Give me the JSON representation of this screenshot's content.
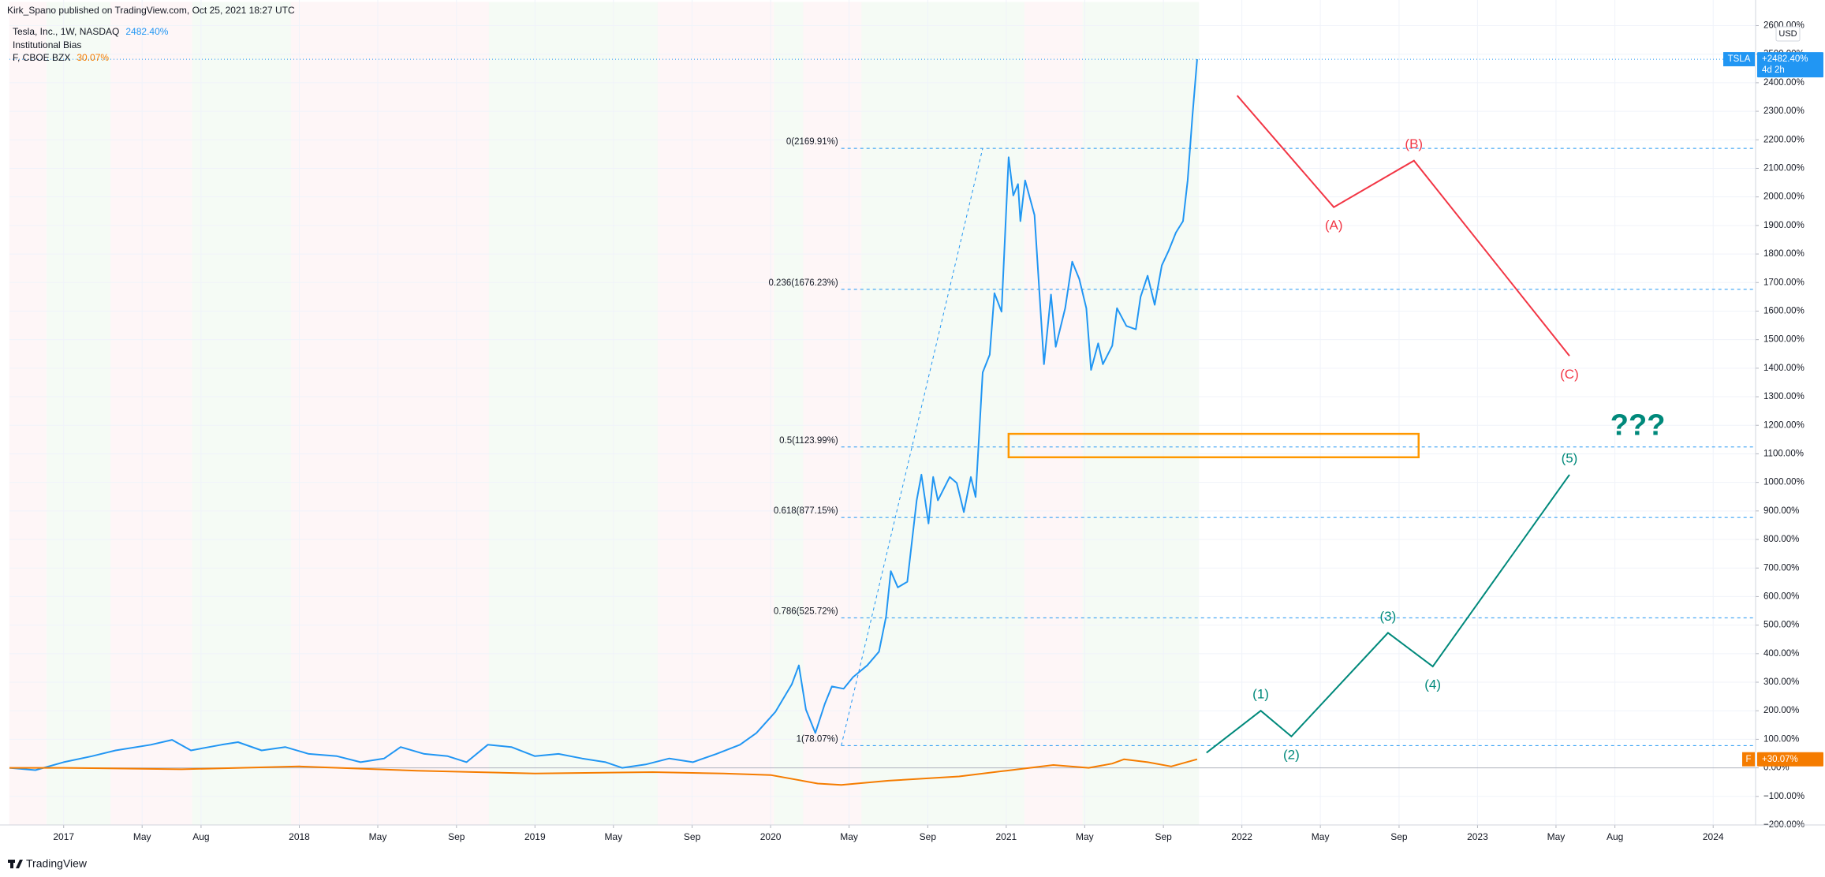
{
  "header": {
    "title": "Kirk_Spano published on TradingView.com, Oct 25, 2021 18:27 UTC"
  },
  "footer": {
    "brand": "TradingView"
  },
  "chart_data": {
    "type": "line",
    "indicator": "Institutional Bias",
    "currency": "USD",
    "xlim": [
      2016.77,
      2024.18
    ],
    "ylim": [
      -200,
      2600
    ],
    "grid": true,
    "xticks": [
      2017,
      {
        "value": 2017.333,
        "label": "May"
      },
      {
        "value": 2017.583,
        "label": "Aug"
      },
      2018,
      {
        "value": 2018.333,
        "label": "May"
      },
      {
        "value": 2018.667,
        "label": "Sep"
      },
      2019,
      {
        "value": 2019.333,
        "label": "May"
      },
      {
        "value": 2019.667,
        "label": "Sep"
      },
      2020,
      {
        "value": 2020.333,
        "label": "May"
      },
      {
        "value": 2020.667,
        "label": "Sep"
      },
      2021,
      {
        "value": 2021.333,
        "label": "May"
      },
      {
        "value": 2021.667,
        "label": "Sep"
      },
      2022,
      {
        "value": 2022.333,
        "label": "May"
      },
      {
        "value": 2022.667,
        "label": "Sep"
      },
      2023,
      {
        "value": 2023.333,
        "label": "May"
      },
      {
        "value": 2023.583,
        "label": "Aug"
      },
      2024
    ],
    "yticks": [
      {
        "value": -200,
        "label": "−200.00%"
      },
      {
        "value": -100,
        "label": "−100.00%"
      },
      {
        "value": 0,
        "label": "0.00%"
      },
      {
        "value": 100,
        "label": "100.00%"
      },
      {
        "value": 200,
        "label": "200.00%"
      },
      {
        "value": 300,
        "label": "300.00%"
      },
      {
        "value": 400,
        "label": "400.00%"
      },
      {
        "value": 500,
        "label": "500.00%"
      },
      {
        "value": 600,
        "label": "600.00%"
      },
      {
        "value": 700,
        "label": "700.00%"
      },
      {
        "value": 800,
        "label": "800.00%"
      },
      {
        "value": 900,
        "label": "900.00%"
      },
      {
        "value": 1000,
        "label": "1000.00%"
      },
      {
        "value": 1100,
        "label": "1100.00%"
      },
      {
        "value": 1200,
        "label": "1200.00%"
      },
      {
        "value": 1300,
        "label": "1300.00%"
      },
      {
        "value": 1400,
        "label": "1400.00%"
      },
      {
        "value": 1500,
        "label": "1500.00%"
      },
      {
        "value": 1600,
        "label": "1600.00%"
      },
      {
        "value": 1700,
        "label": "1700.00%"
      },
      {
        "value": 1800,
        "label": "1800.00%"
      },
      {
        "value": 1900,
        "label": "1900.00%"
      },
      {
        "value": 2000,
        "label": "2000.00%"
      },
      {
        "value": 2100,
        "label": "2100.00%"
      },
      {
        "value": 2200,
        "label": "2200.00%"
      },
      {
        "value": 2300,
        "label": "2300.00%"
      },
      {
        "value": 2400,
        "label": "2400.00%"
      },
      {
        "value": 2500,
        "label": "2500.00%"
      },
      {
        "value": 2600,
        "label": "2600.00%"
      }
    ],
    "series": [
      {
        "name": "Tesla, Inc., 1W, NASDAQ",
        "legend_value": "2482.40%",
        "color": "#2196f3",
        "tag": "TSLA",
        "tag_value": "+2482.40%",
        "countdown": "4d 2h",
        "x": [
          2016.77,
          2016.88,
          2017.0,
          2017.12,
          2017.22,
          2017.37,
          2017.46,
          2017.54,
          2017.67,
          2017.74,
          2017.84,
          2017.94,
          2018.04,
          2018.16,
          2018.26,
          2018.36,
          2018.43,
          2018.53,
          2018.63,
          2018.71,
          2018.8,
          2018.9,
          2019.0,
          2019.1,
          2019.2,
          2019.3,
          2019.37,
          2019.47,
          2019.57,
          2019.67,
          2019.77,
          2019.87,
          2019.94,
          2020.02,
          2020.09,
          2020.12,
          2020.15,
          2020.19,
          2020.23,
          2020.26,
          2020.31,
          2020.35,
          2020.41,
          2020.46,
          2020.49,
          2020.51,
          2020.54,
          2020.58,
          2020.62,
          2020.64,
          2020.67,
          2020.69,
          2020.71,
          2020.76,
          2020.79,
          2020.82,
          2020.85,
          2020.87,
          2020.9,
          2020.93,
          2020.95,
          2020.98,
          2021.01,
          2021.03,
          2021.05,
          2021.06,
          2021.08,
          2021.12,
          2021.16,
          2021.19,
          2021.21,
          2021.25,
          2021.28,
          2021.31,
          2021.34,
          2021.36,
          2021.39,
          2021.41,
          2021.45,
          2021.47,
          2021.51,
          2021.55,
          2021.57,
          2021.6,
          2021.63,
          2021.66,
          2021.69,
          2021.72,
          2021.75,
          2021.77,
          2021.79,
          2021.81
        ],
        "values": [
          0,
          -8,
          20,
          41,
          61,
          81,
          98,
          61,
          81,
          90,
          61,
          73,
          49,
          41,
          20,
          33,
          73,
          49,
          41,
          20,
          81,
          73,
          41,
          49,
          33,
          20,
          0,
          12,
          33,
          20,
          49,
          81,
          122,
          196,
          293,
          359,
          204,
          122,
          224,
          285,
          277,
          318,
          359,
          407,
          530,
          689,
          632,
          652,
          937,
          1027,
          856,
          1019,
          937,
          1019,
          998,
          896,
          1019,
          949,
          1385,
          1447,
          1663,
          1598,
          2139,
          2005,
          2045,
          1915,
          2058,
          1936,
          1414,
          1658,
          1475,
          1610,
          1773,
          1712,
          1610,
          1394,
          1487,
          1414,
          1479,
          1610,
          1548,
          1536,
          1650,
          1724,
          1622,
          1760,
          1813,
          1875,
          1915,
          2058,
          2282,
          2482.4
        ]
      },
      {
        "name": "F, CBOE BZX",
        "legend_value": "30.07%",
        "color": "#f57c00",
        "tag": "F",
        "tag_value": "+30.07%",
        "x": [
          2016.77,
          2017.0,
          2017.5,
          2018.0,
          2018.5,
          2019.0,
          2019.5,
          2019.8,
          2020.0,
          2020.2,
          2020.3,
          2020.5,
          2020.8,
          2021.0,
          2021.2,
          2021.35,
          2021.45,
          2021.5,
          2021.6,
          2021.7,
          2021.81
        ],
        "values": [
          0,
          0,
          -5,
          5,
          -10,
          -20,
          -15,
          -20,
          -25,
          -55,
          -60,
          -45,
          -30,
          -10,
          10,
          0,
          15,
          30,
          20,
          5,
          30.07
        ]
      }
    ],
    "fib": {
      "color": "#2196f3",
      "x": [
        2020.3,
        2020.9
      ],
      "levels": [
        {
          "label": "0(2169.91%)",
          "value": 2169.91
        },
        {
          "label": "0.236(1676.23%)",
          "value": 1676.23
        },
        {
          "label": "0.5(1123.99%)",
          "value": 1123.99
        },
        {
          "label": "0.618(877.15%)",
          "value": 877.15
        },
        {
          "label": "0.786(525.72%)",
          "value": 525.72
        },
        {
          "label": "1(78.07%)",
          "value": 78.07
        }
      ]
    },
    "box": {
      "color": "#ff9800",
      "x": [
        2021.01,
        2022.75
      ],
      "y": [
        1088,
        1170
      ]
    },
    "waves": [
      {
        "color": "#f23645",
        "x": [
          2021.98,
          2022.39,
          2022.73,
          2023.39
        ],
        "values": [
          2355,
          1964,
          2127,
          1443
        ],
        "labels": [
          null,
          "(A)",
          "(B)",
          "(C)"
        ]
      },
      {
        "color": "#00897b",
        "x": [
          2021.85,
          2022.08,
          2022.21,
          2022.62,
          2022.81,
          2023.39
        ],
        "values": [
          53,
          200,
          110,
          473,
          355,
          1027
        ],
        "labels": [
          null,
          "(1)",
          "(2)",
          "(3)",
          "(4)",
          "(5)"
        ]
      }
    ],
    "note": {
      "text": "???",
      "x": 2023.68,
      "y": 1194,
      "color": "#00897b"
    }
  }
}
